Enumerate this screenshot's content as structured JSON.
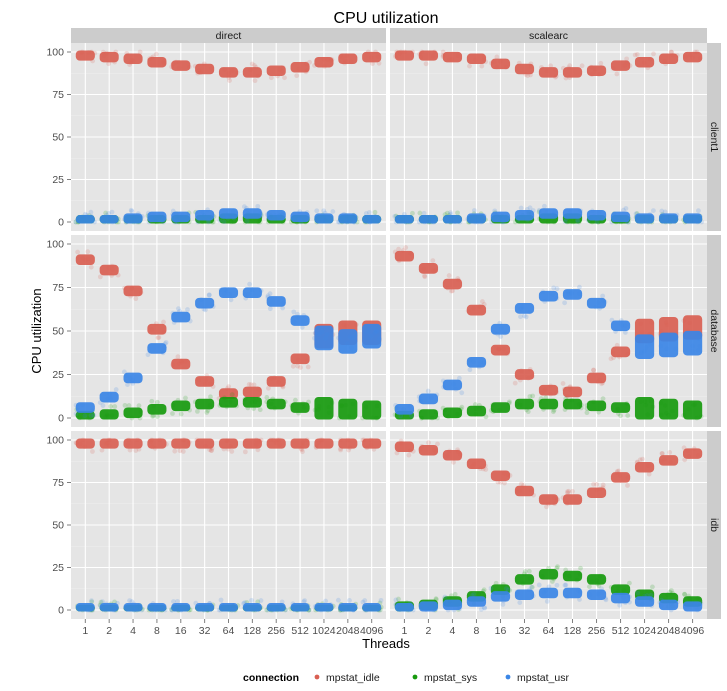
{
  "chart_data": {
    "type": "scatter",
    "title": "CPU utilization",
    "xlabel": "Threads",
    "ylabel": "CPU utilization",
    "categories": [
      "1",
      "2",
      "4",
      "8",
      "16",
      "32",
      "64",
      "128",
      "256",
      "512",
      "1024",
      "2048",
      "4096"
    ],
    "ylim": [
      0,
      100
    ],
    "yticks": [
      0,
      25,
      50,
      75,
      100
    ],
    "grid": true,
    "facet_columns": [
      "direct",
      "scalearc"
    ],
    "facet_rows": [
      "client1",
      "database",
      "idb"
    ],
    "legend": {
      "title": "connection",
      "position": "bottom",
      "entries": [
        {
          "name": "mpstat_idle",
          "color": "#d95f52"
        },
        {
          "name": "mpstat_sys",
          "color": "#179a0e"
        },
        {
          "name": "mpstat_usr",
          "color": "#3b86e6"
        }
      ]
    },
    "panels": [
      {
        "column": "direct",
        "row": "client1",
        "series": [
          {
            "name": "mpstat_idle",
            "values": [
              98,
              97,
              96,
              94,
              92,
              90,
              88,
              88,
              89,
              91,
              94,
              96,
              97
            ]
          },
          {
            "name": "mpstat_sys",
            "values": [
              1,
              1,
              1,
              1,
              1,
              1,
              2,
              2,
              1,
              1,
              1,
              1,
              1
            ]
          },
          {
            "name": "mpstat_usr",
            "values": [
              1,
              1,
              2,
              3,
              3,
              4,
              5,
              5,
              4,
              3,
              2,
              2,
              1
            ]
          }
        ]
      },
      {
        "column": "scalearc",
        "row": "client1",
        "series": [
          {
            "name": "mpstat_idle",
            "values": [
              98,
              98,
              97,
              96,
              93,
              90,
              88,
              88,
              89,
              92,
              94,
              96,
              97
            ]
          },
          {
            "name": "mpstat_sys",
            "values": [
              1,
              1,
              1,
              1,
              1,
              1,
              2,
              2,
              1,
              1,
              1,
              1,
              1
            ]
          },
          {
            "name": "mpstat_usr",
            "values": [
              1,
              1,
              1,
              2,
              3,
              4,
              5,
              5,
              4,
              3,
              2,
              2,
              2
            ]
          }
        ]
      },
      {
        "column": "direct",
        "row": "database",
        "series": [
          {
            "name": "mpstat_idle",
            "values": [
              91,
              85,
              73,
              51,
              31,
              21,
              14,
              15,
              21,
              34,
              47,
              49,
              49
            ]
          },
          {
            "name": "mpstat_sys",
            "values": [
              1,
              2,
              3,
              5,
              7,
              8,
              9,
              9,
              8,
              6,
              5,
              4,
              3
            ]
          },
          {
            "name": "mpstat_usr",
            "values": [
              6,
              12,
              23,
              40,
              58,
              66,
              72,
              72,
              67,
              56,
              46,
              44,
              47
            ]
          }
        ]
      },
      {
        "column": "scalearc",
        "row": "database",
        "series": [
          {
            "name": "mpstat_idle",
            "values": [
              93,
              86,
              77,
              62,
              39,
              25,
              16,
              15,
              23,
              38,
              50,
              51,
              52
            ]
          },
          {
            "name": "mpstat_sys",
            "values": [
              1,
              2,
              3,
              4,
              6,
              8,
              8,
              8,
              7,
              6,
              5,
              4,
              3
            ]
          },
          {
            "name": "mpstat_usr",
            "values": [
              5,
              11,
              19,
              32,
              51,
              63,
              70,
              71,
              66,
              53,
              41,
              42,
              43
            ]
          }
        ]
      },
      {
        "column": "direct",
        "row": "idb",
        "series": [
          {
            "name": "mpstat_idle",
            "values": [
              98,
              98,
              98,
              98,
              98,
              98,
              98,
              98,
              98,
              98,
              98,
              98,
              98
            ]
          },
          {
            "name": "mpstat_sys",
            "values": [
              0,
              0,
              0,
              0,
              0,
              0,
              0,
              0,
              0,
              0,
              0,
              0,
              0
            ]
          },
          {
            "name": "mpstat_usr",
            "values": [
              1,
              1,
              1,
              1,
              1,
              1,
              1,
              1,
              1,
              1,
              1,
              1,
              1
            ]
          }
        ]
      },
      {
        "column": "scalearc",
        "row": "idb",
        "series": [
          {
            "name": "mpstat_idle",
            "values": [
              96,
              94,
              91,
              86,
              79,
              70,
              65,
              65,
              69,
              78,
              84,
              88,
              92
            ]
          },
          {
            "name": "mpstat_sys",
            "values": [
              2,
              3,
              5,
              8,
              12,
              18,
              21,
              20,
              18,
              12,
              9,
              7,
              5
            ]
          },
          {
            "name": "mpstat_usr",
            "values": [
              1,
              2,
              3,
              5,
              8,
              9,
              10,
              10,
              9,
              7,
              5,
              3,
              2
            ]
          }
        ]
      }
    ]
  }
}
